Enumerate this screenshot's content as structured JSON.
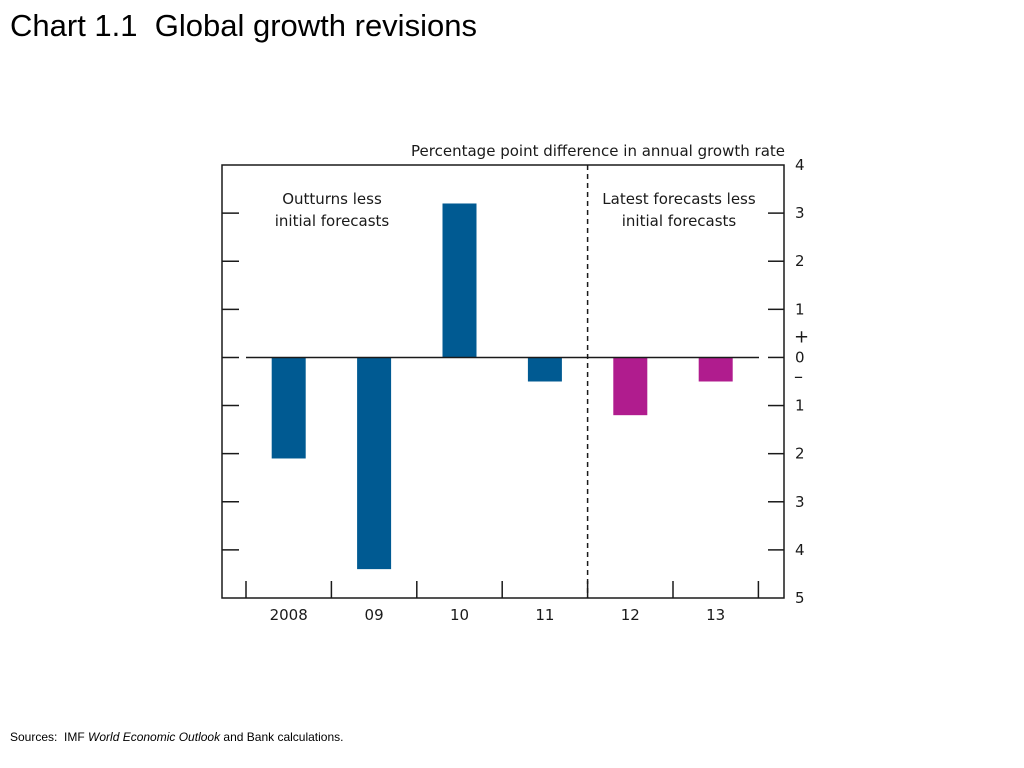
{
  "slide": {
    "title": "Chart 1.1  Global growth revisions"
  },
  "sources": {
    "prefix": "Sources:  IMF ",
    "italic": "World Economic Outlook",
    "suffix": " and Bank calculations."
  },
  "chart_data": {
    "type": "bar",
    "ylabel": "Percentage point difference in annual growth rate",
    "categories": [
      "2008",
      "09",
      "10",
      "11",
      "12",
      "13"
    ],
    "values": [
      -2.1,
      -4.4,
      3.2,
      -0.5,
      -1.2,
      -0.5
    ],
    "bar_colors": [
      "#005a92",
      "#005a92",
      "#005a92",
      "#005a92",
      "#b01c8e",
      "#b01c8e"
    ],
    "ylim": [
      -5,
      4
    ],
    "y_ticks": [
      4,
      3,
      2,
      1,
      0,
      -1,
      -2,
      -3,
      -4,
      -5
    ],
    "y_tick_labels": [
      "4",
      "3",
      "2",
      "1",
      "0",
      "1",
      "2",
      "3",
      "4",
      "5"
    ],
    "sign_plus": "+",
    "sign_minus": "–",
    "annotations": [
      {
        "lines": [
          "Outturns less",
          "initial forecasts"
        ]
      },
      {
        "lines": [
          "Latest forecasts less",
          "initial forecasts"
        ]
      }
    ],
    "divider_after_category": 3,
    "grid": false
  }
}
